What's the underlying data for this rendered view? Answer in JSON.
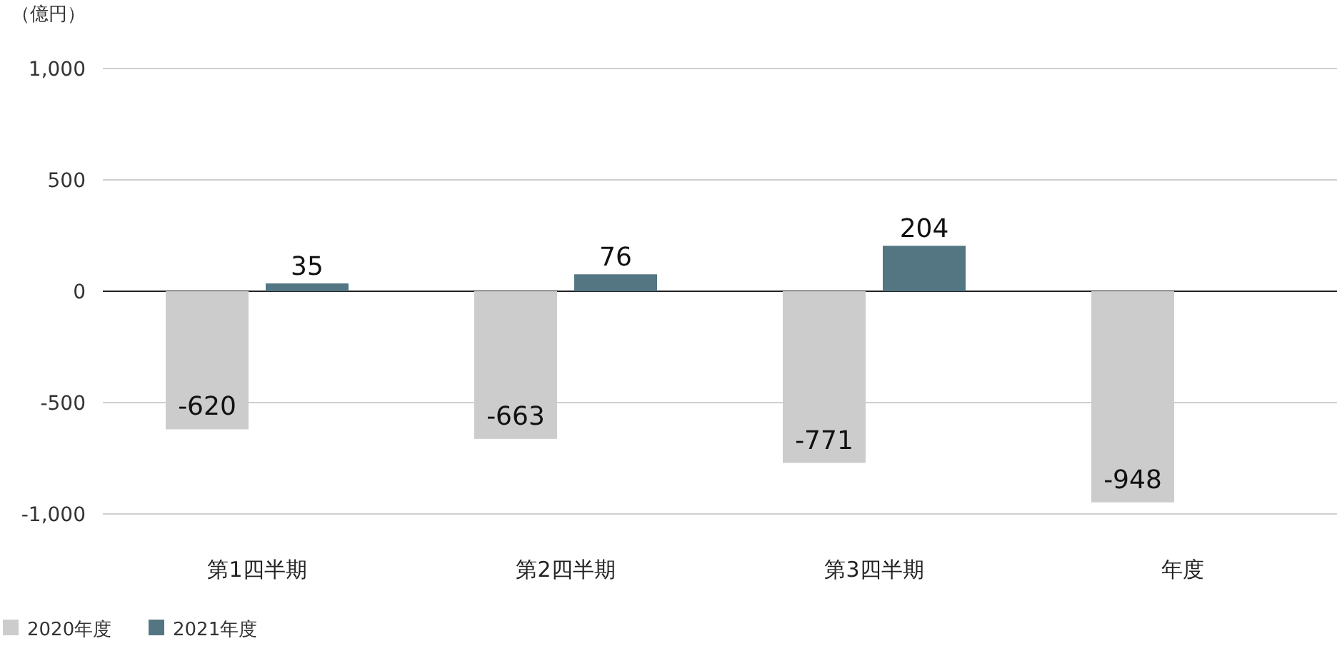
{
  "chart_data": {
    "type": "bar",
    "ylabel": "（億円）",
    "categories": [
      "第1四半期",
      "第2四半期",
      "第3四半期",
      "年度"
    ],
    "series": [
      {
        "name": "2020年度",
        "color": "#cccccc",
        "values": [
          -620,
          -663,
          -771,
          -948
        ]
      },
      {
        "name": "2021年度",
        "color": "#537682",
        "values": [
          35,
          76,
          204,
          null
        ]
      }
    ],
    "ylim": [
      -1000,
      1000
    ],
    "yticks": [
      {
        "value": -1000,
        "label": "-1,000"
      },
      -500,
      0,
      500,
      {
        "value": 1000,
        "label": "1,000"
      }
    ],
    "grid": "y",
    "legend": "bottom left",
    "data_labels": true
  }
}
